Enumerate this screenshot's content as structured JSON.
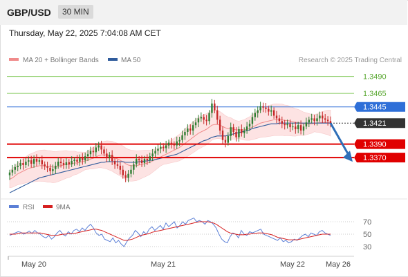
{
  "header": {
    "symbol": "GBP/USD",
    "timeframe": "30 MIN",
    "datetime": "Thursday, May 22, 2025 7:04:08 AM CET"
  },
  "legend": {
    "ma20_bb": "MA 20 + Bollinger Bands",
    "ma50": "MA 50",
    "credit": "Research © 2025 Trading Central",
    "rsi": "RSI",
    "ma9": "9MA"
  },
  "colors": {
    "bull": "#2e7d32",
    "bear": "#c62828",
    "ma20": "#f08a8a",
    "bbfill": "#fde3e3",
    "ma50": "#2f5b9c",
    "resistance": "#6abf3a",
    "support": "#e00000",
    "pivot": "#2e6fd8",
    "current": "#333333",
    "rsi": "#5b7fd6",
    "ma9": "#d62020"
  },
  "chart_data": [
    {
      "type": "candlestick",
      "x_ticks": [
        "May 20",
        "May 21",
        "May 22",
        "May 26"
      ],
      "ylim": [
        1.3315,
        1.3505
      ],
      "levels": [
        {
          "value": 1.349,
          "label": "1.3490",
          "role": "resistance"
        },
        {
          "value": 1.3465,
          "label": "1.3465",
          "role": "resistance"
        },
        {
          "value": 1.3445,
          "label": "1.3445",
          "role": "pivot"
        },
        {
          "value": 1.3421,
          "label": "1.3421",
          "role": "current"
        },
        {
          "value": 1.339,
          "label": "1.3390",
          "role": "support"
        },
        {
          "value": 1.337,
          "label": "1.3370",
          "role": "support"
        }
      ],
      "close_approx": [
        1.3348,
        1.3352,
        1.3356,
        1.3358,
        1.3362,
        1.3359,
        1.3364,
        1.3366,
        1.3361,
        1.3368,
        1.3364,
        1.3366,
        1.336,
        1.3357,
        1.3355,
        1.335,
        1.3353,
        1.3358,
        1.3364,
        1.3362,
        1.3359,
        1.3363,
        1.336,
        1.3365,
        1.3367,
        1.3364,
        1.337,
        1.3366,
        1.3372,
        1.3375,
        1.338,
        1.3378,
        1.3385,
        1.3388,
        1.3382,
        1.3376,
        1.337,
        1.3374,
        1.3365,
        1.336,
        1.3358,
        1.3352,
        1.3344,
        1.334,
        1.3346,
        1.3352,
        1.336,
        1.3368,
        1.3366,
        1.3362,
        1.3368,
        1.3366,
        1.3372,
        1.3376,
        1.338,
        1.3383,
        1.3386,
        1.3384,
        1.3388,
        1.3392,
        1.339,
        1.3388,
        1.3394,
        1.3396,
        1.3403,
        1.3408,
        1.3413,
        1.341,
        1.3418,
        1.3422,
        1.3428,
        1.343,
        1.3426,
        1.3424,
        1.3436,
        1.345,
        1.344,
        1.3426,
        1.341,
        1.3396,
        1.3392,
        1.3402,
        1.3415,
        1.3408,
        1.34,
        1.3412,
        1.3406,
        1.341,
        1.3416,
        1.342,
        1.343,
        1.3436,
        1.344,
        1.3446,
        1.3444,
        1.3442,
        1.3438,
        1.344,
        1.3432,
        1.3428,
        1.3424,
        1.342,
        1.3418,
        1.342,
        1.3415,
        1.3416,
        1.3412,
        1.3418,
        1.341,
        1.3416,
        1.3422,
        1.3426,
        1.3428,
        1.3424,
        1.3428,
        1.3432,
        1.3428,
        1.3426,
        1.3424,
        1.3421
      ],
      "ma20_approx": [
        1.3338,
        1.334,
        1.3343,
        1.3346,
        1.3348,
        1.335,
        1.3352,
        1.3354,
        1.3355,
        1.3356,
        1.3357,
        1.3358,
        1.3358,
        1.3358,
        1.3357,
        1.3357,
        1.3356,
        1.3356,
        1.3357,
        1.3358,
        1.3359,
        1.336,
        1.336,
        1.3361,
        1.3362,
        1.3362,
        1.3363,
        1.3364,
        1.3365,
        1.3366,
        1.3368,
        1.3369,
        1.3371,
        1.3373,
        1.3374,
        1.3374,
        1.3374,
        1.3373,
        1.3372,
        1.337,
        1.3368,
        1.3366,
        1.3364,
        1.3361,
        1.3359,
        1.3358,
        1.3358,
        1.3358,
        1.3359,
        1.336,
        1.3361,
        1.3362,
        1.3363,
        1.3365,
        1.3367,
        1.3369,
        1.3371,
        1.3373,
        1.3375,
        1.3377,
        1.3379,
        1.3381,
        1.3383,
        1.3385,
        1.3388,
        1.3391,
        1.3394,
        1.3397,
        1.34,
        1.3403,
        1.3406,
        1.3408,
        1.341,
        1.3412,
        1.3415,
        1.3418,
        1.3419,
        1.3419,
        1.3418,
        1.3416,
        1.3414,
        1.3413,
        1.3413,
        1.3412,
        1.3411,
        1.3411,
        1.3411,
        1.3411,
        1.3412,
        1.3413,
        1.3415,
        1.3417,
        1.3419,
        1.3421,
        1.3422,
        1.3423,
        1.3424,
        1.3425,
        1.3426,
        1.3426,
        1.3426,
        1.3426,
        1.3425,
        1.3425,
        1.3424,
        1.3423,
        1.3422,
        1.3422,
        1.3421,
        1.342,
        1.342,
        1.342,
        1.342,
        1.3421,
        1.3421,
        1.3422,
        1.3422,
        1.3422,
        1.3422,
        1.3421
      ],
      "bb_halfwidth_approx": 0.0018,
      "ma50_approx": [
        1.3318,
        1.332,
        1.3322,
        1.3324,
        1.3326,
        1.3328,
        1.333,
        1.3332,
        1.3334,
        1.3336,
        1.3338,
        1.334,
        1.3341,
        1.3342,
        1.3343,
        1.3344,
        1.3345,
        1.3346,
        1.3347,
        1.3348,
        1.3349,
        1.335,
        1.3351,
        1.3352,
        1.3353,
        1.3354,
        1.3355,
        1.3356,
        1.3357,
        1.3358,
        1.3359,
        1.336,
        1.3361,
        1.3362,
        1.3363,
        1.3363,
        1.3364,
        1.3364,
        1.3364,
        1.3364,
        1.3364,
        1.3364,
        1.3364,
        1.3363,
        1.3363,
        1.3363,
        1.3363,
        1.3363,
        1.3364,
        1.3364,
        1.3365,
        1.3365,
        1.3366,
        1.3366,
        1.3367,
        1.3368,
        1.3369,
        1.337,
        1.3371,
        1.3372,
        1.3373,
        1.3374,
        1.3375,
        1.3377,
        1.3379,
        1.3381,
        1.3383,
        1.3385,
        1.3387,
        1.3389,
        1.3391,
        1.3393,
        1.3395,
        1.3396,
        1.3398,
        1.34,
        1.3401,
        1.3402,
        1.3402,
        1.3402,
        1.3402,
        1.3403,
        1.3404,
        1.3405,
        1.3406,
        1.3407,
        1.3408,
        1.3409,
        1.341,
        1.3411,
        1.3413,
        1.3414,
        1.3415,
        1.3416,
        1.3417,
        1.3418,
        1.3419,
        1.342,
        1.342,
        1.342,
        1.3421,
        1.3421,
        1.3421,
        1.3421,
        1.3421,
        1.3421,
        1.3421,
        1.3421,
        1.3421,
        1.3421,
        1.3421,
        1.3421,
        1.3421,
        1.3421,
        1.3421,
        1.3421,
        1.3421,
        1.3421,
        1.3421,
        1.3421
      ]
    },
    {
      "type": "line",
      "name": "RSI",
      "ylim": [
        20,
        80
      ],
      "y_ticks": [
        70,
        50,
        30
      ],
      "rsi_approx": [
        48,
        50,
        52,
        54,
        53,
        50,
        52,
        55,
        51,
        56,
        52,
        50,
        46,
        44,
        48,
        42,
        46,
        52,
        56,
        50,
        47,
        54,
        50,
        56,
        58,
        54,
        60,
        56,
        62,
        66,
        60,
        52,
        48,
        50,
        42,
        40,
        38,
        44,
        36,
        40,
        34,
        30,
        38,
        44,
        48,
        56,
        52,
        46,
        54,
        50,
        58,
        62,
        56,
        60,
        64,
        58,
        68,
        62,
        66,
        70,
        60,
        64,
        70,
        66,
        72,
        74,
        76,
        70,
        72,
        70,
        66,
        72,
        70,
        66,
        60,
        50,
        42,
        38,
        36,
        46,
        52,
        50,
        44,
        56,
        50,
        48,
        54,
        52,
        54,
        56,
        58,
        50,
        48,
        46,
        44,
        42,
        40,
        44,
        38,
        40,
        36,
        38,
        42,
        40,
        44,
        48,
        50,
        46,
        52,
        50,
        48,
        54,
        56,
        52,
        50,
        48
      ],
      "ma9_approx": [
        50,
        50,
        50,
        51,
        52,
        52,
        52,
        52,
        52,
        52,
        52,
        52,
        51,
        50,
        49,
        48,
        48,
        48,
        49,
        50,
        50,
        51,
        51,
        51,
        52,
        53,
        54,
        55,
        56,
        57,
        58,
        58,
        57,
        56,
        54,
        52,
        50,
        48,
        46,
        44,
        42,
        40,
        40,
        41,
        42,
        44,
        46,
        48,
        49,
        50,
        51,
        53,
        54,
        55,
        56,
        57,
        58,
        59,
        60,
        61,
        62,
        63,
        64,
        65,
        66,
        67,
        68,
        69,
        70,
        70,
        70,
        70,
        69,
        68,
        66,
        63,
        60,
        57,
        54,
        52,
        51,
        50,
        49,
        49,
        49,
        50,
        50,
        51,
        51,
        52,
        52,
        52,
        51,
        50,
        49,
        47,
        45,
        44,
        43,
        42,
        41,
        41,
        41,
        41,
        42,
        43,
        44,
        45,
        46,
        47,
        48,
        49,
        50,
        50,
        50,
        50
      ]
    }
  ]
}
